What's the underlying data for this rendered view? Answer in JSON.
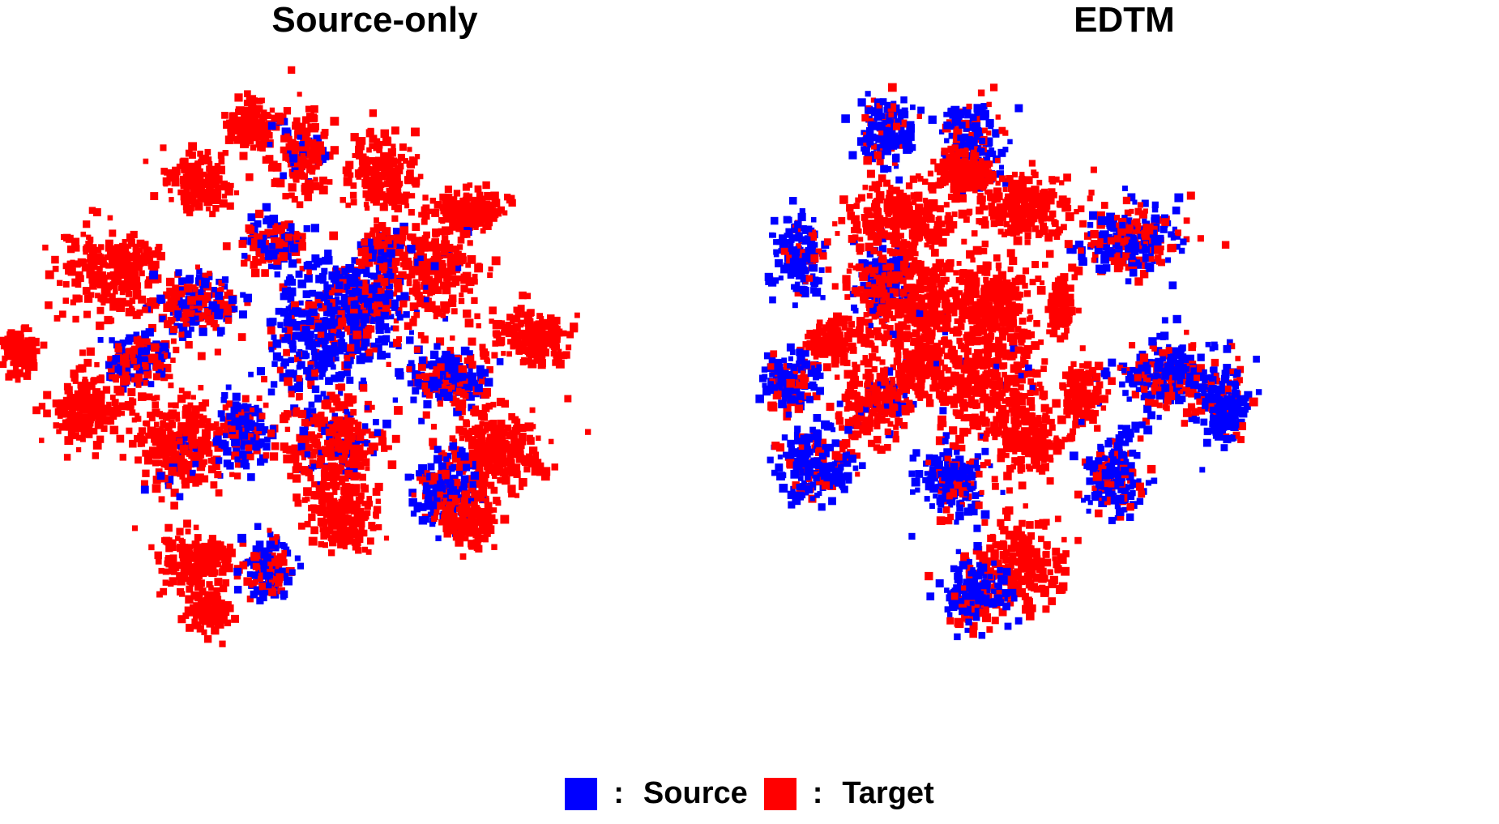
{
  "chart_data": [
    {
      "type": "scatter",
      "title": "Source-only",
      "series": [
        {
          "name": "Source",
          "color": "#0000ff"
        },
        {
          "name": "Target",
          "color": "#ff0000"
        }
      ]
    },
    {
      "type": "scatter",
      "title": "EDTM",
      "series": [
        {
          "name": "Source",
          "color": "#0000ff"
        },
        {
          "name": "Target",
          "color": "#ff0000"
        }
      ]
    }
  ],
  "legend": {
    "separator": ":",
    "items": [
      {
        "label": "Source",
        "color": "#0000ff"
      },
      {
        "label": "Target",
        "color": "#ff0000"
      }
    ]
  }
}
